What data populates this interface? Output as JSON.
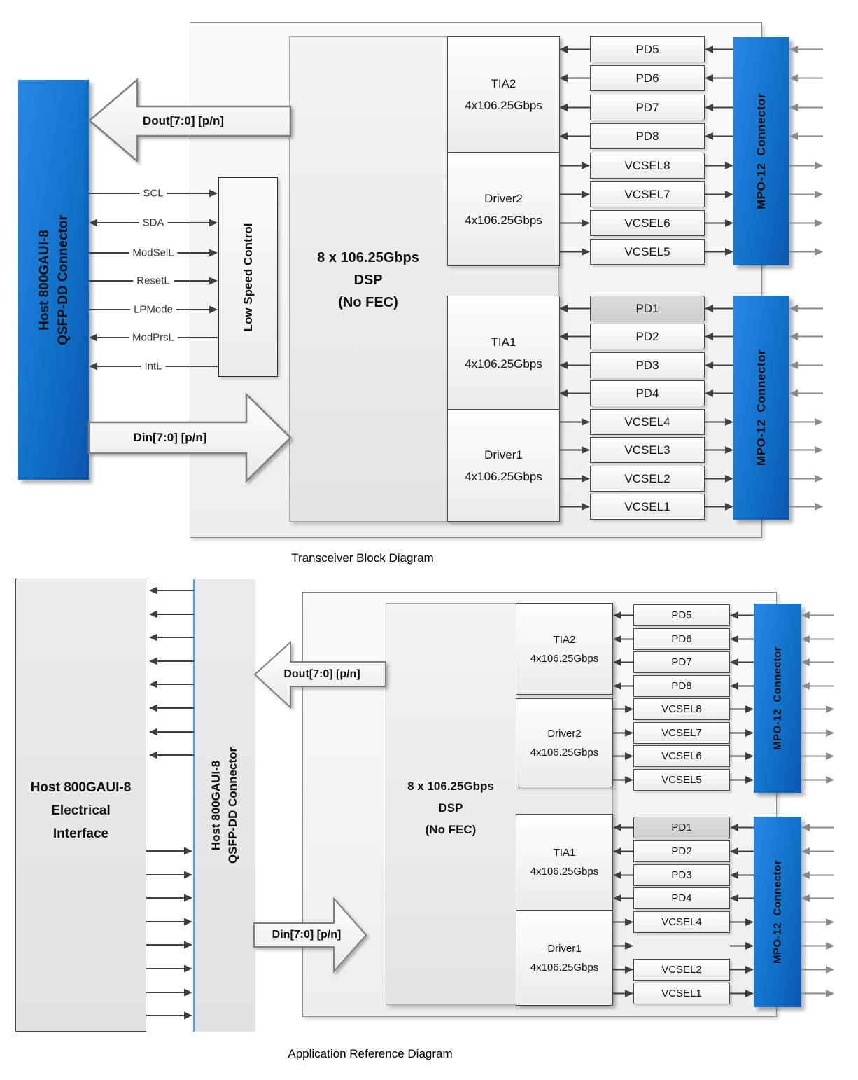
{
  "colors": {
    "connector_blue": "#1172ca",
    "connector_blue_dark": "#0b57ae",
    "pd1_highlight": "#d6d6d6",
    "qsfp_edge_blue": "#4f9fe4",
    "arrow_dark": "#3f3f3f",
    "arrow_gray": "#8a8a8a"
  },
  "transceiver_diagram": {
    "caption": "Transceiver Block Diagram",
    "host_connector": {
      "line1": "Host 800GAUI-8",
      "line2": "QSFP-DD Connector"
    },
    "dout_arrow_label": "Dout[7:0] [p/n]",
    "din_arrow_label": "Din[7:0]  [p/n]",
    "low_speed_control_label": "Low Speed Control",
    "signals": [
      {
        "label": "SCL",
        "direction": "to-module"
      },
      {
        "label": "SDA",
        "direction": "bidirectional"
      },
      {
        "label": "ModSelL",
        "direction": "to-module"
      },
      {
        "label": "ResetL",
        "direction": "to-module"
      },
      {
        "label": "LPMode",
        "direction": "to-module"
      },
      {
        "label": "ModPrsL",
        "direction": "to-host"
      },
      {
        "label": "IntL",
        "direction": "to-host"
      }
    ],
    "dsp_lines": [
      "8 x 106.25Gbps",
      "DSP",
      "(No FEC)"
    ],
    "tia2": {
      "title": "TIA2",
      "rate": "4x106.25Gbps"
    },
    "driver2": {
      "title": "Driver2",
      "rate": "4x106.25Gbps"
    },
    "tia1": {
      "title": "TIA1",
      "rate": "4x106.25Gbps"
    },
    "driver1": {
      "title": "Driver1",
      "rate": "4x106.25Gbps"
    },
    "mpo_connector_label": "MPO-12 Connector",
    "upper_channels": [
      {
        "label": "PD5",
        "type": "pd"
      },
      {
        "label": "PD6",
        "type": "pd"
      },
      {
        "label": "PD7",
        "type": "pd"
      },
      {
        "label": "PD8",
        "type": "pd"
      },
      {
        "label": "VCSEL8",
        "type": "vcsel"
      },
      {
        "label": "VCSEL7",
        "type": "vcsel"
      },
      {
        "label": "VCSEL6",
        "type": "vcsel"
      },
      {
        "label": "VCSEL5",
        "type": "vcsel"
      }
    ],
    "lower_channels": [
      {
        "label": "PD1",
        "type": "pd",
        "highlighted": true
      },
      {
        "label": "PD2",
        "type": "pd"
      },
      {
        "label": "PD3",
        "type": "pd"
      },
      {
        "label": "PD4",
        "type": "pd"
      },
      {
        "label": "VCSEL4",
        "type": "vcsel"
      },
      {
        "label": "VCSEL3",
        "type": "vcsel"
      },
      {
        "label": "VCSEL2",
        "type": "vcsel"
      },
      {
        "label": "VCSEL1",
        "type": "vcsel"
      }
    ]
  },
  "application_diagram": {
    "caption": "Application Reference Diagram",
    "electrical_interface_lines": [
      "Host 800GAUI-8",
      "Electrical",
      "Interface"
    ],
    "qsfp_connector": {
      "line1": "Host 800GAUI-8",
      "line2": "QSFP-DD Connector"
    },
    "dout_arrow_label": "Dout[7:0] [p/n]",
    "din_arrow_label": "Din[7:0] [p/n]",
    "dsp_lines": [
      "8 x 106.25Gbps",
      "DSP",
      "(No FEC)"
    ],
    "tia2": {
      "title": "TIA2",
      "rate": "4x106.25Gbps"
    },
    "driver2": {
      "title": "Driver2",
      "rate": "4x106.25Gbps"
    },
    "tia1": {
      "title": "TIA1",
      "rate": "4x106.25Gbps"
    },
    "driver1": {
      "title": "Driver1",
      "rate": "4x106.25Gbps"
    },
    "mpo_connector_label": "MPO-12 Connector",
    "upper_channels": [
      {
        "label": "PD5",
        "type": "pd"
      },
      {
        "label": "PD6",
        "type": "pd"
      },
      {
        "label": "PD7",
        "type": "pd"
      },
      {
        "label": "PD8",
        "type": "pd"
      },
      {
        "label": "VCSEL8",
        "type": "vcsel"
      },
      {
        "label": "VCSEL7",
        "type": "vcsel"
      },
      {
        "label": "VCSEL6",
        "type": "vcsel"
      },
      {
        "label": "VCSEL5",
        "type": "vcsel"
      }
    ],
    "lower_channels": [
      {
        "label": "PD1",
        "type": "pd",
        "highlighted": true
      },
      {
        "label": "PD2",
        "type": "pd"
      },
      {
        "label": "PD3",
        "type": "pd"
      },
      {
        "label": "PD4",
        "type": "pd"
      },
      {
        "label": "VCSEL4",
        "type": "vcsel"
      },
      {
        "label": "",
        "type": "vcsel",
        "missing_box": true
      },
      {
        "label": "VCSEL2",
        "type": "vcsel"
      },
      {
        "label": "VCSEL1",
        "type": "vcsel"
      }
    ]
  }
}
